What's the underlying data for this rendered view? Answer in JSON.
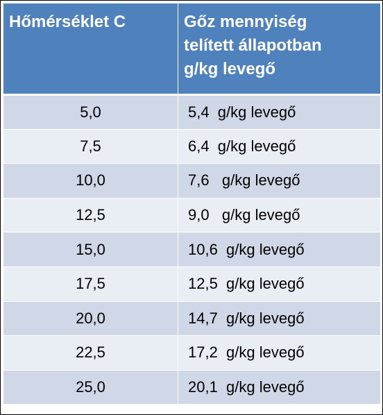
{
  "header": {
    "col1": "Hőmérséklet C",
    "col2_lines": [
      "Gőz mennyiség",
      "telített állapotban",
      "g/kg levegő"
    ]
  },
  "rows": [
    {
      "temp": "5,0",
      "vapor": "5,4  g/kg levegő"
    },
    {
      "temp": "7,5",
      "vapor": "6,4  g/kg levegő"
    },
    {
      "temp": "10,0",
      "vapor": "7,6   g/kg levegő"
    },
    {
      "temp": "12,5",
      "vapor": "9,0   g/kg levegő"
    },
    {
      "temp": "15,0",
      "vapor": "10,6  g/kg levegő"
    },
    {
      "temp": "17,5",
      "vapor": "12,5  g/kg levegő"
    },
    {
      "temp": "20,0",
      "vapor": "14,7  g/kg levegő"
    },
    {
      "temp": "22,5",
      "vapor": "17,2  g/kg levegő"
    },
    {
      "temp": "25,0",
      "vapor": "20,1  g/kg levegő"
    }
  ],
  "colors": {
    "header_bg": "#4f81bd",
    "row_dark": "#d0d8e8",
    "row_light": "#e9edf4"
  }
}
